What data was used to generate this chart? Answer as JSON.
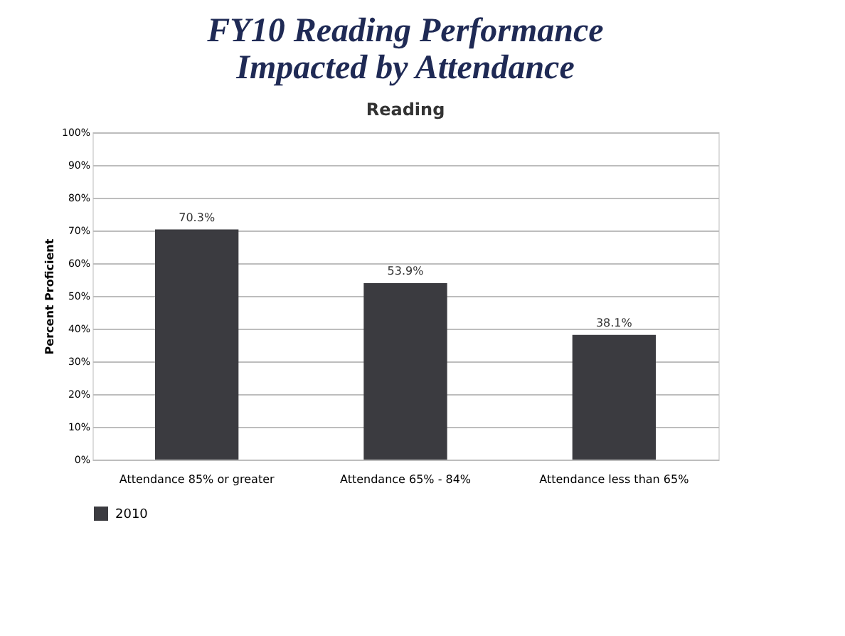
{
  "chart_data": {
    "type": "bar",
    "title": "FY10 Reading Performance Impacted by Attendance",
    "subtitle": "Reading",
    "ylabel": "Percent Proficient",
    "categories": [
      "Attendance 85% or greater",
      "Attendance 65% - 84%",
      "Attendance less than 65%"
    ],
    "series": [
      {
        "name": "2010",
        "color": "#3b3b40",
        "values": [
          70.3,
          53.9,
          38.1
        ],
        "value_labels": [
          "70.3%",
          "53.9%",
          "38.1%"
        ]
      }
    ],
    "ylim": [
      0,
      100
    ],
    "yticks": [
      {
        "value": 0,
        "label": "0%"
      },
      {
        "value": 10,
        "label": "10%"
      },
      {
        "value": 20,
        "label": "20%"
      },
      {
        "value": 30,
        "label": "30%"
      },
      {
        "value": 40,
        "label": "40%"
      },
      {
        "value": 50,
        "label": "50%"
      },
      {
        "value": 60,
        "label": "60%"
      },
      {
        "value": 70,
        "label": "70%"
      },
      {
        "value": 80,
        "label": "80%"
      },
      {
        "value": 90,
        "label": "90%"
      },
      {
        "value": 100,
        "label": "100%"
      }
    ],
    "grid": "y",
    "legend": "bottom left"
  }
}
